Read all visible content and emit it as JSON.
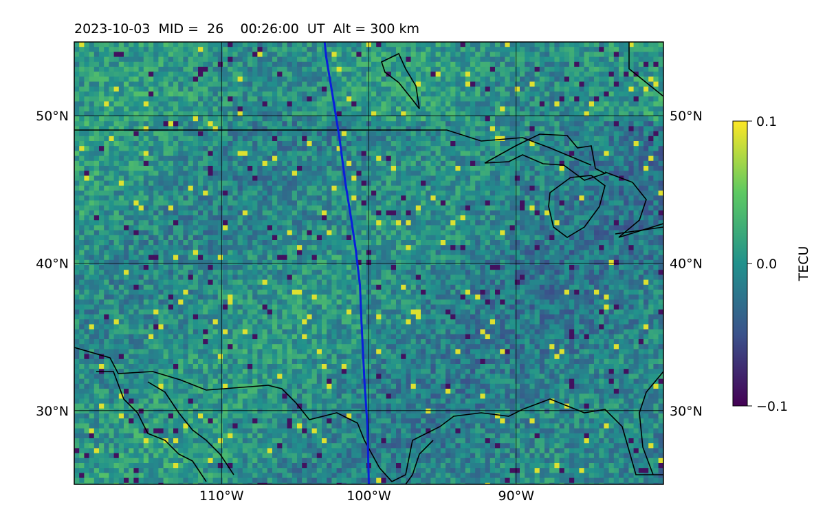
{
  "header": {
    "title": "2023-10-03  MID =  26    00:26:00  UT  Alt = 300 km"
  },
  "map": {
    "projection": "lat-lon",
    "lon_range": [
      -120,
      -80
    ],
    "lat_range": [
      25,
      55
    ],
    "lat_ticks": [
      {
        "value": 50,
        "label": "50°N"
      },
      {
        "value": 40,
        "label": "40°N"
      },
      {
        "value": 30,
        "label": "30°N"
      }
    ],
    "lon_ticks": [
      {
        "value": -110,
        "label": "110°W"
      },
      {
        "value": -100,
        "label": "100°W"
      },
      {
        "value": -90,
        "label": "90°W"
      }
    ],
    "gridlines": true,
    "field": "TEC perturbation (pixelated noise field, mostly near 0 TECU)",
    "track_color": "#0a1edc",
    "track": [
      [
        -103,
        55
      ],
      [
        -102.9,
        54
      ],
      [
        -102.4,
        51
      ],
      [
        -102,
        48.5
      ],
      [
        -101.6,
        45.5
      ],
      [
        -101.2,
        43
      ],
      [
        -100.9,
        41
      ],
      [
        -100.6,
        38.5
      ],
      [
        -100.5,
        36
      ],
      [
        -100.3,
        32
      ],
      [
        -100.1,
        29
      ],
      [
        -100.0,
        25
      ]
    ]
  },
  "colorbar": {
    "label": "TECU",
    "vmin": -0.1,
    "vmax": 0.1,
    "ticks": [
      {
        "value": 0.1,
        "label": "0.1"
      },
      {
        "value": 0.0,
        "label": "0.0"
      },
      {
        "value": -0.1,
        "label": "−0.1"
      }
    ],
    "colormap": "viridis",
    "colors": [
      "#440154",
      "#3b528b",
      "#21918c",
      "#5ec962",
      "#fde725"
    ]
  }
}
